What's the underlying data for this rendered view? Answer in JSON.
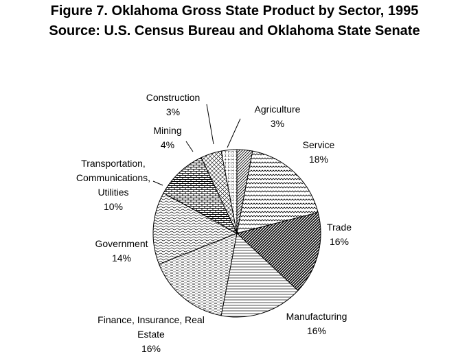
{
  "chart_data": {
    "type": "pie",
    "title": "Figure 7. Oklahoma Gross State Product by Sector, 1995",
    "subtitle": "Source: U.S. Census Bureau and Oklahoma State Senate",
    "slices": [
      {
        "label_lines": [
          "Agriculture"
        ],
        "value": 3,
        "pct": "3%"
      },
      {
        "label_lines": [
          "Service"
        ],
        "value": 18,
        "pct": "18%"
      },
      {
        "label_lines": [
          "Trade"
        ],
        "value": 16,
        "pct": "16%"
      },
      {
        "label_lines": [
          "Manufacturing"
        ],
        "value": 16,
        "pct": "16%"
      },
      {
        "label_lines": [
          "Finance, Insurance, Real",
          "Estate"
        ],
        "value": 16,
        "pct": "16%"
      },
      {
        "label_lines": [
          "Government"
        ],
        "value": 14,
        "pct": "14%"
      },
      {
        "label_lines": [
          "Transportation,",
          "Communications,",
          "Utilities"
        ],
        "value": 10,
        "pct": "10%"
      },
      {
        "label_lines": [
          "Mining"
        ],
        "value": 4,
        "pct": "4%"
      },
      {
        "label_lines": [
          "Construction"
        ],
        "value": 3,
        "pct": "3%"
      }
    ],
    "legend": "none"
  }
}
